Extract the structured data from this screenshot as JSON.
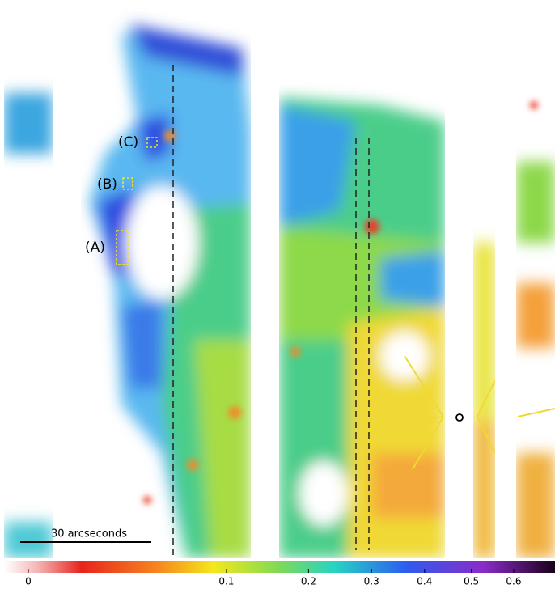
{
  "annotations": [
    "(A)",
    "(B)",
    "(C)"
  ],
  "scale_bar": "30 arcseconds",
  "colorbar": {
    "scale": "sqrt",
    "clim": [
      0,
      0.7
    ],
    "ticks": [
      0,
      0.1,
      0.2,
      0.3,
      0.4,
      0.5,
      0.6
    ]
  }
}
